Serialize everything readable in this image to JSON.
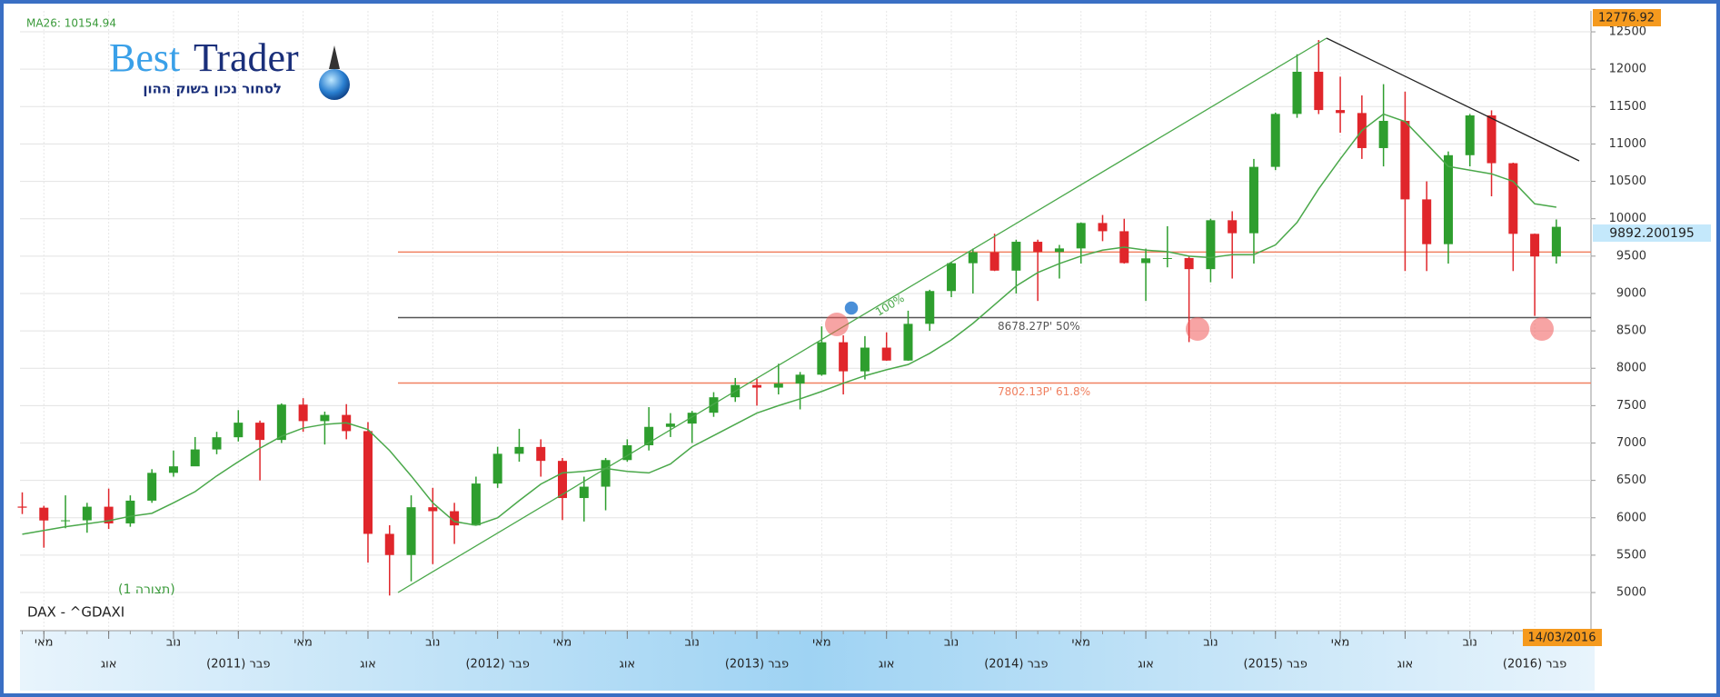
{
  "chart_data": {
    "type": "candlestick",
    "ma_label": "MA26: 10154.94",
    "symbol": "DAX - ^GDAXI",
    "layout_label": "(תצורה 1)",
    "max_label": "12776.92",
    "last_price_label": "9892.200195",
    "date_label": "14/03/2016",
    "fib_100_label": "100%",
    "categories": [
      null,
      "מאי",
      null,
      null,
      "אוג",
      null,
      null,
      "נוב",
      null,
      null,
      "פבר (2011)",
      null,
      null,
      "מאי",
      null,
      null,
      "אוג",
      null,
      null,
      "נוב",
      null,
      null,
      "פבר (2012)",
      null,
      null,
      "מאי",
      null,
      null,
      "אוג",
      null,
      null,
      "נוב",
      null,
      null,
      "פבר (2013)",
      null,
      null,
      "מאי",
      null,
      null,
      "אוג",
      null,
      null,
      "נוב",
      null,
      null,
      "פבר (2014)",
      null,
      null,
      "מאי",
      null,
      null,
      "אוג",
      null,
      null,
      "נוב",
      null,
      null,
      "פבר (2015)",
      null,
      null,
      "מאי",
      null,
      null,
      "אוג",
      null,
      null,
      "נוב",
      null,
      null,
      "פבר (2016)",
      null
    ],
    "open": [
      6150,
      6135,
      5964,
      5966,
      6148,
      5925,
      6229,
      6601,
      6688,
      6914,
      7077,
      7272,
      7041,
      7514,
      7293,
      7376,
      7159,
      5785,
      5502,
      6141,
      6088,
      5898,
      6458,
      6856,
      6947,
      6761,
      6264,
      6416,
      6772,
      6970,
      7216,
      7260,
      7405,
      7612,
      7776,
      7741,
      7795,
      7914,
      8348,
      7959,
      8276,
      8103,
      8594,
      9033,
      9405,
      9552,
      9306,
      9692,
      9556,
      9603,
      9943,
      9833,
      9407,
      9470,
      9474,
      9326,
      9980,
      9806,
      10694,
      11402,
      11966,
      11454,
      11414,
      10945,
      11309,
      10259,
      9660,
      10850,
      11382,
      10743,
      9798,
      9495
    ],
    "high": [
      6340,
      6160,
      6300,
      6200,
      6390,
      6300,
      6650,
      6900,
      7080,
      7150,
      7440,
      7300,
      7530,
      7600,
      7420,
      7520,
      7280,
      5900,
      6300,
      6400,
      6200,
      6550,
      6950,
      7190,
      7050,
      6800,
      6550,
      6800,
      7050,
      7480,
      7400,
      7430,
      7680,
      7870,
      7860,
      8060,
      7950,
      8560,
      8440,
      8430,
      8480,
      8770,
      9050,
      9420,
      9600,
      9800,
      9720,
      9720,
      9650,
      9950,
      10050,
      10000,
      9600,
      9900,
      9500,
      10000,
      10100,
      10800,
      11420,
      12200,
      12390,
      11900,
      11650,
      11800,
      11700,
      10500,
      10900,
      11400,
      11450,
      10750,
      9800,
      9990
    ],
    "low": [
      6050,
      5600,
      5860,
      5800,
      5850,
      5880,
      6200,
      6550,
      6700,
      6850,
      7020,
      6500,
      7000,
      7150,
      6980,
      7050,
      5400,
      4960,
      5150,
      5380,
      5650,
      5900,
      6400,
      6750,
      6550,
      5970,
      5950,
      6100,
      6750,
      6900,
      7080,
      7000,
      7350,
      7550,
      7500,
      7650,
      7450,
      7900,
      7650,
      7850,
      8100,
      8100,
      8500,
      8950,
      9000,
      9300,
      9000,
      8900,
      9200,
      9400,
      9700,
      9400,
      8900,
      9350,
      8350,
      9150,
      9200,
      9400,
      10650,
      11350,
      11400,
      11150,
      10800,
      10700,
      9300,
      9300,
      9400,
      10700,
      10300,
      9300,
      8700,
      9400
    ],
    "close": [
      6135,
      5964,
      5966,
      6148,
      5925,
      6229,
      6601,
      6688,
      6914,
      7077,
      7272,
      7041,
      7514,
      7293,
      7376,
      7159,
      5785,
      5502,
      6141,
      6088,
      5898,
      6458,
      6856,
      6947,
      6761,
      6264,
      6416,
      6772,
      6970,
      7216,
      7260,
      7405,
      7612,
      7776,
      7741,
      7795,
      7914,
      8348,
      7959,
      8276,
      8103,
      8594,
      9033,
      9405,
      9552,
      9306,
      9692,
      9556,
      9603,
      9943,
      9833,
      9407,
      9470,
      9474,
      9326,
      9980,
      9806,
      10694,
      11402,
      11966,
      11454,
      11414,
      10945,
      11309,
      10259,
      9660,
      10850,
      11382,
      10743,
      9798,
      9495,
      9892
    ],
    "ma_values": [
      5780,
      5830,
      5880,
      5920,
      5960,
      6020,
      6060,
      6200,
      6350,
      6560,
      6750,
      6930,
      7090,
      7200,
      7250,
      7270,
      7180,
      6900,
      6560,
      6200,
      5950,
      5900,
      6000,
      6230,
      6450,
      6600,
      6620,
      6660,
      6620,
      6600,
      6720,
      6950,
      7100,
      7250,
      7400,
      7500,
      7590,
      7690,
      7800,
      7900,
      7980,
      8050,
      8200,
      8380,
      8600,
      8850,
      9100,
      9280,
      9400,
      9500,
      9580,
      9620,
      9580,
      9560,
      9500,
      9480,
      9520,
      9520,
      9650,
      9950,
      10400,
      10800,
      11180,
      11400,
      11300,
      11000,
      10700,
      10650,
      10600,
      10500,
      10200,
      10155
    ],
    "ma_color": "#4aa84a",
    "up_color": "#2e9e2e",
    "down_color": "#e0262b",
    "fib_levels": [
      {
        "value": 9554,
        "color": "#f08060"
      },
      {
        "value": 8678.27,
        "label": "8678.27P' 50%",
        "color": "#555555"
      },
      {
        "value": 7802.13,
        "label": "7802.13P' 61.8%",
        "color": "#f08060"
      }
    ],
    "ylim": [
      4490,
      12780
    ],
    "yticks": [
      5000,
      5500,
      6000,
      6500,
      7000,
      7500,
      8000,
      8500,
      9000,
      9500,
      10000,
      10500,
      11000,
      11500,
      12000,
      12500
    ],
    "grid": true
  },
  "logo": {
    "best": "Best",
    "trader": "Trader",
    "tagline": "לסחור נכון בשוק ההון"
  }
}
